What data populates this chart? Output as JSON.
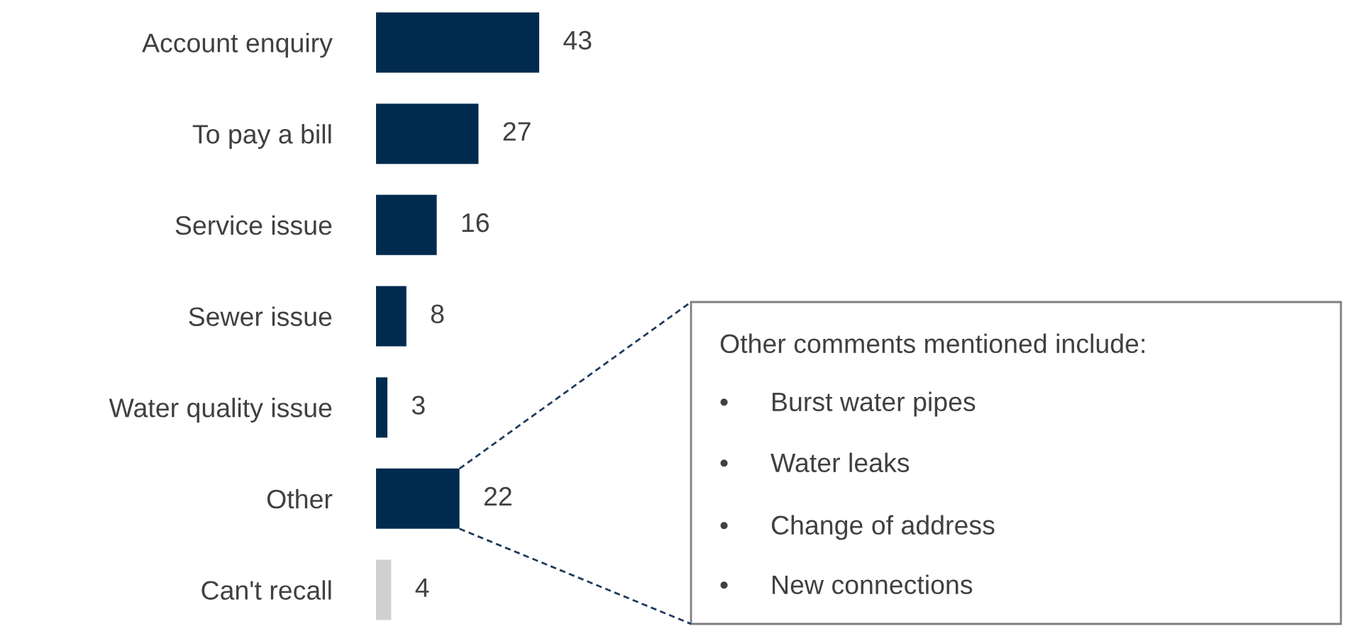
{
  "chart_data": {
    "type": "bar",
    "orientation": "horizontal",
    "categories": [
      "Account enquiry",
      "To pay a bill",
      "Service issue",
      "Sewer issue",
      "Water quality issue",
      "Other",
      "Can't recall"
    ],
    "values": [
      43,
      27,
      16,
      8,
      3,
      22,
      4
    ],
    "colors": [
      "#002b4f",
      "#002b4f",
      "#002b4f",
      "#002b4f",
      "#002b4f",
      "#002b4f",
      "#d0d0d0"
    ],
    "data_labels": true,
    "grid": false,
    "legend": false,
    "annotations": [
      "Other comments mentioned include:",
      "• Burst water pipes",
      "• Water leaks",
      "• Change of address",
      "• New connections"
    ]
  }
}
